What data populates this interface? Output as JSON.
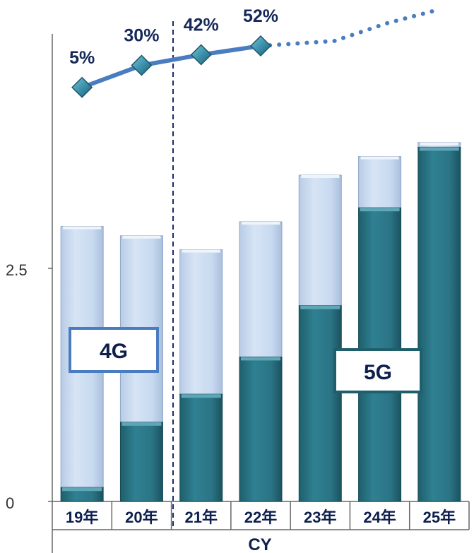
{
  "chart_data": {
    "type": "bar",
    "stacked": true,
    "categories": [
      "19年",
      "20年",
      "21年",
      "22年",
      "23年",
      "24年",
      "25年"
    ],
    "series": [
      {
        "name": "5G",
        "values": [
          0.15,
          0.85,
          1.15,
          1.55,
          2.1,
          3.15,
          3.8
        ],
        "color": "#2a7585"
      },
      {
        "name": "4G",
        "values": [
          2.8,
          2.0,
          1.55,
          1.45,
          1.4,
          0.55,
          0.05
        ],
        "color": "#c6d8ef"
      }
    ],
    "ratio_line": {
      "values_pct": [
        5,
        30,
        42,
        52
      ],
      "labels": [
        "5%",
        "30%",
        "42%",
        "52%"
      ],
      "projected": true,
      "color": "#4a7cc0"
    },
    "y_ticks": [
      0,
      2.5
    ],
    "y_tick_labels": [
      "0",
      "2.5"
    ],
    "ylim": [
      0,
      5.2
    ],
    "xlabel": "CY",
    "divider_after_category": "20年",
    "legend_boxes": [
      "4G",
      "5G"
    ]
  }
}
